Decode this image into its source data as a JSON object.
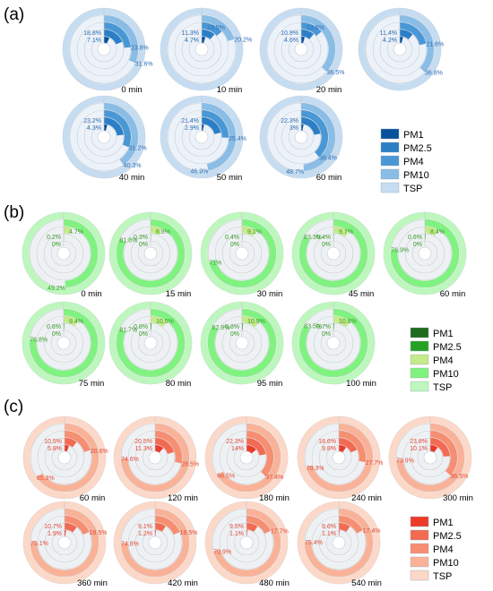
{
  "chart_data": [
    {
      "panel": "(a)",
      "type": "radial-bar",
      "series_names": [
        "PM1",
        "PM2.5",
        "PM4",
        "PM10",
        "TSP"
      ],
      "colors": {
        "ring": [
          "#08519c",
          "#2c7fc7",
          "#4a97d6",
          "#89bde6",
          "#c6dcf1"
        ],
        "track": "#ecf2f9",
        "label": "#2e6fb5"
      },
      "charts": [
        {
          "time": "0 min",
          "values": [
            7.1,
            18.8,
            23.8,
            31.6,
            100
          ],
          "labels": [
            "7.1%",
            "18.8%",
            "23.8%",
            "31.6%",
            ""
          ]
        },
        {
          "time": "10 min",
          "values": [
            4.7,
            11.3,
            13.5,
            20.2,
            100
          ],
          "labels": [
            "4.7%",
            "11.3%",
            "13.5%",
            "20.2%",
            ""
          ]
        },
        {
          "time": "20 min",
          "values": [
            4.6,
            10.9,
            13.6,
            36.5,
            100
          ],
          "labels": [
            "4.6%",
            "10.9%",
            "13.6%",
            "36.5%",
            ""
          ]
        },
        {
          "time": "",
          "values": [
            4.2,
            11.4,
            21.6,
            36.8,
            100
          ],
          "labels": [
            "4.2%",
            "11.4%",
            "21.6%",
            "36.8%",
            ""
          ]
        },
        {
          "time": "40 min",
          "values": [
            4.3,
            23.2,
            31.2,
            40.3,
            100
          ],
          "labels": [
            "4.3%",
            "23.2%",
            "31.2%",
            "40.3%",
            ""
          ]
        },
        {
          "time": "50 min",
          "values": [
            2.9,
            21.4,
            25.4,
            46.9,
            100
          ],
          "labels": [
            "2.9%",
            "21.4%",
            "25.4%",
            "46.9%",
            ""
          ]
        },
        {
          "time": "60 min",
          "values": [
            3,
            22.3,
            38.4,
            48.7,
            100
          ],
          "labels": [
            "3%",
            "22.3%",
            "38.4%",
            "48.7%",
            ""
          ]
        }
      ]
    },
    {
      "panel": "(b)",
      "type": "radial-bar",
      "series_names": [
        "PM1",
        "PM2.5",
        "PM4",
        "PM10",
        "TSP"
      ],
      "colors": {
        "ring": [
          "#1f6b1f",
          "#25a025",
          "#c5ea8a",
          "#7ff27f",
          "#bdf7bd"
        ],
        "track": "#eef1f4",
        "label": "#3a9a2a"
      },
      "charts": [
        {
          "time": "0 min",
          "values": [
            0,
            0.2,
            4.7,
            49.2,
            100
          ],
          "labels": [
            "0%",
            "0.2%",
            "4.7%",
            "49.2%",
            ""
          ]
        },
        {
          "time": "15 min",
          "values": [
            0,
            0.3,
            6.8,
            81.8,
            100
          ],
          "labels": [
            "0%",
            "0.3%",
            "6.8%",
            "81.8%",
            ""
          ]
        },
        {
          "time": "30 min",
          "values": [
            0,
            0.4,
            9.1,
            71,
            100
          ],
          "labels": [
            "0%",
            "0.4%",
            "9.1%",
            "71%",
            ""
          ]
        },
        {
          "time": "45 min",
          "values": [
            0,
            0.4,
            9.7,
            83.3,
            100
          ],
          "labels": [
            "0%",
            "0.4%",
            "9.7%",
            "83.3%",
            ""
          ]
        },
        {
          "time": "60 min",
          "values": [
            0,
            0.6,
            8.4,
            76.9,
            100
          ],
          "labels": [
            "0%",
            "0.6%",
            "8.4%",
            "76.9%",
            ""
          ]
        },
        {
          "time": "75 min",
          "values": [
            0,
            0.6,
            9.4,
            76.8,
            100
          ],
          "labels": [
            "0%",
            "0.6%",
            "9.4%",
            "76.8%",
            ""
          ]
        },
        {
          "time": "80 min",
          "values": [
            0,
            0.8,
            10.5,
            81.7,
            100
          ],
          "labels": [
            "0%",
            "0.8%",
            "10.5%",
            "81.7%",
            ""
          ]
        },
        {
          "time": "95 min",
          "values": [
            0,
            0.8,
            10.9,
            82.9,
            100
          ],
          "labels": [
            "0%",
            "0.8%",
            "10.9%",
            "82.9%",
            ""
          ]
        },
        {
          "time": "100 min",
          "values": [
            0,
            0.7,
            10.8,
            83.5,
            100
          ],
          "labels": [
            "0%",
            "0.7%",
            "10.8%",
            "83.5%",
            ""
          ]
        }
      ]
    },
    {
      "panel": "(c)",
      "type": "radial-bar",
      "series_names": [
        "PM1",
        "PM2.5",
        "PM4",
        "PM10",
        "TSP"
      ],
      "colors": {
        "ring": [
          "#ec3b2a",
          "#f26a52",
          "#f68e72",
          "#f9b298",
          "#fcd8c8"
        ],
        "track": "#eef1f4",
        "label": "#e24b39"
      },
      "charts": [
        {
          "time": "60 min",
          "values": [
            5.8,
            10.5,
            20.6,
            65.3,
            100
          ],
          "labels": [
            "5.8%",
            "10.5%",
            "20.6%",
            "65.3%",
            ""
          ]
        },
        {
          "time": "120 min",
          "values": [
            11.3,
            20.5,
            28.5,
            74.6,
            100
          ],
          "labels": [
            "11.3%",
            "20.5%",
            "28.5%",
            "74.6%",
            ""
          ]
        },
        {
          "time": "180 min",
          "values": [
            14,
            22.3,
            37.4,
            66.5,
            100
          ],
          "labels": [
            "14%",
            "22.3%",
            "37.4%",
            "66.5%",
            ""
          ]
        },
        {
          "time": "240 min",
          "values": [
            9.8,
            18.6,
            27.7,
            70.3,
            100
          ],
          "labels": [
            "9.8%",
            "18.6%",
            "27.7%",
            "70.3%",
            ""
          ]
        },
        {
          "time": "300 min",
          "values": [
            10.1,
            23.8,
            36.5,
            73.9,
            100
          ],
          "labels": [
            "10.1%",
            "23.8%",
            "36.5%",
            "73.9%",
            ""
          ]
        },
        {
          "time": "360 min",
          "values": [
            1.9,
            10.7,
            18.5,
            75.1,
            100
          ],
          "labels": [
            "1.9%",
            "10.7%",
            "18.5%",
            "75.1%",
            ""
          ]
        },
        {
          "time": "420 min",
          "values": [
            1.2,
            9.1,
            18.5,
            74.8,
            100
          ],
          "labels": [
            "1.2%",
            "9.1%",
            "18.5%",
            "74.8%",
            ""
          ]
        },
        {
          "time": "480 min",
          "values": [
            1.1,
            9.5,
            17.7,
            70.9,
            100
          ],
          "labels": [
            "1.1%",
            "9.5%",
            "17.7%",
            "70.9%",
            ""
          ]
        },
        {
          "time": "540 min",
          "values": [
            1.1,
            9.6,
            17.4,
            75.4,
            100
          ],
          "labels": [
            "1.1%",
            "9.6%",
            "17.4%",
            "75.4%",
            ""
          ]
        }
      ]
    }
  ]
}
